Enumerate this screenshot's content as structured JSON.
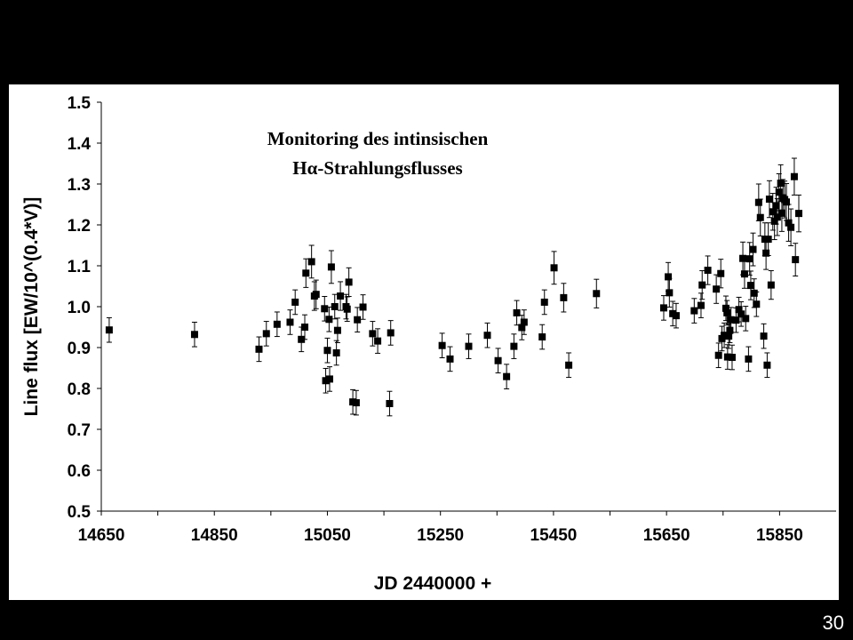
{
  "slide": {
    "number": "30"
  },
  "colors": {
    "background": "#000000",
    "panel": "#ffffff",
    "marker": "#000000",
    "errorbar": "#000000"
  },
  "chart_data": {
    "type": "scatter",
    "title_lines": [
      "Monitoring des intinsischen",
      "Hα-Strahlungsflusses"
    ],
    "xlabel": "JD 2440000 +",
    "ylabel": "Line flux [EW/10^(0.4*V)]",
    "xlim": [
      14650,
      15950
    ],
    "ylim": [
      0.5,
      1.5
    ],
    "x_ticks": [
      14650,
      14850,
      15050,
      15250,
      15450,
      15650,
      15850
    ],
    "y_ticks": [
      "0.5",
      "0.6",
      "0.7",
      "0.8",
      "0.9",
      "1.0",
      "1.1",
      "1.2",
      "1.3",
      "1.4",
      "1.5"
    ],
    "grid": false,
    "legend": "none",
    "marker": "square",
    "error_bars": true,
    "points": [
      [
        14664,
        0.943,
        0.03
      ],
      [
        14815,
        0.932,
        0.03
      ],
      [
        14929,
        0.896,
        0.03
      ],
      [
        14942,
        0.934,
        0.03
      ],
      [
        14961,
        0.957,
        0.03
      ],
      [
        14984,
        0.962,
        0.03
      ],
      [
        14993,
        1.011,
        0.03
      ],
      [
        15004,
        0.92,
        0.03
      ],
      [
        15010,
        0.95,
        0.03
      ],
      [
        15012,
        1.082,
        0.035
      ],
      [
        15022,
        1.11,
        0.04
      ],
      [
        15027,
        1.026,
        0.035
      ],
      [
        15030,
        1.03,
        0.035
      ],
      [
        15045,
        0.995,
        0.03
      ],
      [
        15047,
        0.819,
        0.03
      ],
      [
        15050,
        0.893,
        0.03
      ],
      [
        15053,
        0.969,
        0.03
      ],
      [
        15054,
        0.823,
        0.03
      ],
      [
        15057,
        1.097,
        0.04
      ],
      [
        15063,
        1.0,
        0.03
      ],
      [
        15066,
        0.887,
        0.03
      ],
      [
        15068,
        0.942,
        0.03
      ],
      [
        15073,
        1.026,
        0.035
      ],
      [
        15083,
        1.0,
        0.03
      ],
      [
        15085,
        0.994,
        0.03
      ],
      [
        15088,
        1.06,
        0.035
      ],
      [
        15095,
        0.767,
        0.03
      ],
      [
        15101,
        0.765,
        0.03
      ],
      [
        15103,
        0.968,
        0.03
      ],
      [
        15113,
        0.999,
        0.03
      ],
      [
        15130,
        0.934,
        0.03
      ],
      [
        15139,
        0.916,
        0.03
      ],
      [
        15160,
        0.763,
        0.03
      ],
      [
        15162,
        0.936,
        0.03
      ],
      [
        15253,
        0.905,
        0.03
      ],
      [
        15267,
        0.872,
        0.03
      ],
      [
        15300,
        0.903,
        0.03
      ],
      [
        15333,
        0.93,
        0.03
      ],
      [
        15352,
        0.868,
        0.03
      ],
      [
        15367,
        0.829,
        0.03
      ],
      [
        15380,
        0.903,
        0.03
      ],
      [
        15385,
        0.985,
        0.03
      ],
      [
        15394,
        0.949,
        0.03
      ],
      [
        15398,
        0.962,
        0.03
      ],
      [
        15430,
        0.926,
        0.03
      ],
      [
        15434,
        1.011,
        0.03
      ],
      [
        15451,
        1.095,
        0.04
      ],
      [
        15468,
        1.022,
        0.035
      ],
      [
        15477,
        0.857,
        0.03
      ],
      [
        15526,
        1.032,
        0.035
      ],
      [
        15645,
        0.997,
        0.03
      ],
      [
        15653,
        1.073,
        0.035
      ],
      [
        15655,
        1.034,
        0.035
      ],
      [
        15661,
        0.983,
        0.03
      ],
      [
        15667,
        0.978,
        0.03
      ],
      [
        15699,
        0.99,
        0.03
      ],
      [
        15711,
        1.003,
        0.03
      ],
      [
        15713,
        1.053,
        0.035
      ],
      [
        15723,
        1.089,
        0.035
      ],
      [
        15738,
        1.043,
        0.035
      ],
      [
        15742,
        0.881,
        0.03
      ],
      [
        15746,
        1.081,
        0.035
      ],
      [
        15748,
        0.922,
        0.03
      ],
      [
        15752,
        0.93,
        0.03
      ],
      [
        15755,
        0.996,
        0.03
      ],
      [
        15757,
        0.985,
        0.03
      ],
      [
        15758,
        0.877,
        0.03
      ],
      [
        15760,
        0.928,
        0.03
      ],
      [
        15762,
        0.942,
        0.03
      ],
      [
        15764,
        0.968,
        0.03
      ],
      [
        15766,
        0.876,
        0.03
      ],
      [
        15773,
        0.967,
        0.03
      ],
      [
        15778,
        0.993,
        0.03
      ],
      [
        15782,
        0.982,
        0.03
      ],
      [
        15785,
        1.118,
        0.04
      ],
      [
        15788,
        1.08,
        0.035
      ],
      [
        15790,
        0.971,
        0.03
      ],
      [
        15795,
        0.872,
        0.03
      ],
      [
        15797,
        1.117,
        0.04
      ],
      [
        15799,
        1.052,
        0.035
      ],
      [
        15803,
        1.14,
        0.04
      ],
      [
        15805,
        1.033,
        0.035
      ],
      [
        15809,
        1.006,
        0.03
      ],
      [
        15813,
        1.255,
        0.045
      ],
      [
        15816,
        1.218,
        0.045
      ],
      [
        15822,
        0.928,
        0.03
      ],
      [
        15824,
        1.165,
        0.04
      ],
      [
        15826,
        1.131,
        0.04
      ],
      [
        15828,
        0.857,
        0.03
      ],
      [
        15830,
        1.165,
        0.04
      ],
      [
        15832,
        1.263,
        0.045
      ],
      [
        15835,
        1.053,
        0.035
      ],
      [
        15838,
        1.232,
        0.045
      ],
      [
        15841,
        1.209,
        0.045
      ],
      [
        15844,
        1.247,
        0.045
      ],
      [
        15846,
        1.219,
        0.045
      ],
      [
        15849,
        1.28,
        0.045
      ],
      [
        15852,
        1.302,
        0.045
      ],
      [
        15854,
        1.229,
        0.045
      ],
      [
        15856,
        1.266,
        0.045
      ],
      [
        15859,
        1.262,
        0.045
      ],
      [
        15862,
        1.256,
        0.045
      ],
      [
        15866,
        1.205,
        0.045
      ],
      [
        15870,
        1.194,
        0.045
      ],
      [
        15876,
        1.318,
        0.045
      ],
      [
        15878,
        1.115,
        0.04
      ],
      [
        15884,
        1.228,
        0.045
      ]
    ]
  }
}
